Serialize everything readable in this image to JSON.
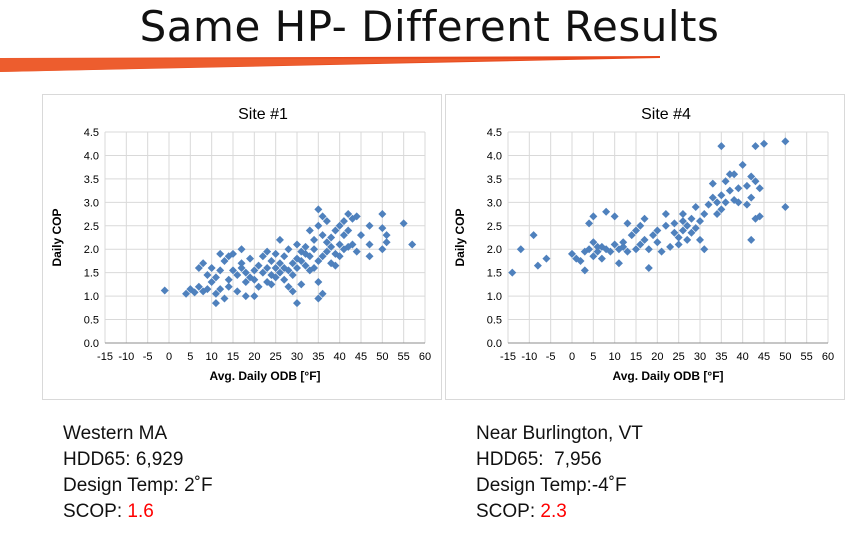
{
  "page": {
    "title": "Same HP- Different Results"
  },
  "colors": {
    "accent": "#e8491d",
    "marker": "#4f81bd",
    "scop_value": "#ff0000"
  },
  "chart_data": [
    {
      "type": "scatter",
      "title": "Site #1",
      "xlabel": "Avg. Daily ODB [°F]",
      "ylabel": "Daily COP",
      "xlim": [
        -15,
        60
      ],
      "ylim": [
        0,
        4.5
      ],
      "xticks": [
        -15,
        -10,
        -5,
        0,
        5,
        10,
        15,
        20,
        25,
        30,
        35,
        40,
        45,
        50,
        55,
        60
      ],
      "yticks": [
        "0.0",
        "0.5",
        "1.0",
        "1.5",
        "2.0",
        "2.5",
        "3.0",
        "3.5",
        "4.0",
        "4.5"
      ],
      "grid": true,
      "marker": "diamond",
      "points": [
        [
          -1,
          1.12
        ],
        [
          4,
          1.05
        ],
        [
          5,
          1.15
        ],
        [
          6,
          1.08
        ],
        [
          7,
          1.2
        ],
        [
          7,
          1.6
        ],
        [
          8,
          1.7
        ],
        [
          8,
          1.1
        ],
        [
          9,
          1.15
        ],
        [
          9,
          1.45
        ],
        [
          10,
          1.3
        ],
        [
          10,
          1.6
        ],
        [
          11,
          0.85
        ],
        [
          11,
          1.05
        ],
        [
          11,
          1.4
        ],
        [
          12,
          1.55
        ],
        [
          12,
          1.9
        ],
        [
          12,
          1.15
        ],
        [
          13,
          0.95
        ],
        [
          13,
          1.75
        ],
        [
          14,
          1.2
        ],
        [
          14,
          1.85
        ],
        [
          14,
          1.35
        ],
        [
          15,
          1.9
        ],
        [
          15,
          1.55
        ],
        [
          16,
          1.1
        ],
        [
          16,
          1.45
        ],
        [
          17,
          1.7
        ],
        [
          17,
          2.0
        ],
        [
          17,
          1.6
        ],
        [
          18,
          1.0
        ],
        [
          18,
          1.3
        ],
        [
          18,
          1.5
        ],
        [
          19,
          1.4
        ],
        [
          19,
          1.8
        ],
        [
          20,
          1.35
        ],
        [
          20,
          1.55
        ],
        [
          20,
          1.0
        ],
        [
          21,
          1.2
        ],
        [
          21,
          1.65
        ],
        [
          22,
          1.5
        ],
        [
          22,
          1.85
        ],
        [
          23,
          1.3
        ],
        [
          23,
          1.6
        ],
        [
          23,
          1.95
        ],
        [
          24,
          1.45
        ],
        [
          24,
          1.75
        ],
        [
          24,
          1.25
        ],
        [
          25,
          1.6
        ],
        [
          25,
          1.9
        ],
        [
          25,
          1.4
        ],
        [
          26,
          1.5
        ],
        [
          26,
          1.7
        ],
        [
          26,
          2.2
        ],
        [
          27,
          1.35
        ],
        [
          27,
          1.6
        ],
        [
          27,
          1.85
        ],
        [
          28,
          1.2
        ],
        [
          28,
          1.55
        ],
        [
          28,
          2.0
        ],
        [
          29,
          1.7
        ],
        [
          29,
          1.45
        ],
        [
          29,
          1.1
        ],
        [
          30,
          0.85
        ],
        [
          30,
          1.8
        ],
        [
          30,
          1.6
        ],
        [
          30,
          2.1
        ],
        [
          31,
          1.75
        ],
        [
          31,
          1.95
        ],
        [
          31,
          1.25
        ],
        [
          32,
          1.65
        ],
        [
          32,
          2.05
        ],
        [
          32,
          1.9
        ],
        [
          33,
          1.55
        ],
        [
          33,
          1.85
        ],
        [
          33,
          2.4
        ],
        [
          34,
          1.6
        ],
        [
          34,
          2.0
        ],
        [
          34,
          2.2
        ],
        [
          35,
          1.75
        ],
        [
          35,
          2.5
        ],
        [
          35,
          2.85
        ],
        [
          35,
          1.3
        ],
        [
          35,
          0.95
        ],
        [
          36,
          1.85
        ],
        [
          36,
          2.3
        ],
        [
          36,
          2.7
        ],
        [
          36,
          1.05
        ],
        [
          37,
          1.95
        ],
        [
          37,
          2.15
        ],
        [
          37,
          2.6
        ],
        [
          38,
          1.7
        ],
        [
          38,
          2.05
        ],
        [
          38,
          2.25
        ],
        [
          39,
          1.65
        ],
        [
          39,
          2.4
        ],
        [
          39,
          1.9
        ],
        [
          40,
          1.85
        ],
        [
          40,
          2.1
        ],
        [
          40,
          2.5
        ],
        [
          41,
          2.0
        ],
        [
          41,
          2.3
        ],
        [
          41,
          2.6
        ],
        [
          42,
          2.05
        ],
        [
          42,
          2.4
        ],
        [
          42,
          2.75
        ],
        [
          43,
          2.1
        ],
        [
          43,
          2.65
        ],
        [
          44,
          2.7
        ],
        [
          44,
          1.95
        ],
        [
          45,
          2.3
        ],
        [
          47,
          2.1
        ],
        [
          47,
          1.85
        ],
        [
          47,
          2.5
        ],
        [
          50,
          2.0
        ],
        [
          50,
          2.45
        ],
        [
          50,
          2.75
        ],
        [
          51,
          2.3
        ],
        [
          51,
          2.15
        ],
        [
          55,
          2.55
        ],
        [
          57,
          2.1
        ]
      ]
    },
    {
      "type": "scatter",
      "title": "Site #4",
      "xlabel": "Avg. Daily ODB [°F]",
      "ylabel": "Daily COP",
      "xlim": [
        -15,
        60
      ],
      "ylim": [
        0,
        4.5
      ],
      "xticks": [
        -15,
        -10,
        -5,
        0,
        5,
        10,
        15,
        20,
        25,
        30,
        35,
        40,
        45,
        50,
        55,
        60
      ],
      "yticks": [
        "0.0",
        "0.5",
        "1.0",
        "1.5",
        "2.0",
        "2.5",
        "3.0",
        "3.5",
        "4.0",
        "4.5"
      ],
      "grid": true,
      "marker": "diamond",
      "points": [
        [
          -14,
          1.5
        ],
        [
          -12,
          2.0
        ],
        [
          -9,
          2.3
        ],
        [
          -8,
          1.65
        ],
        [
          -6,
          1.8
        ],
        [
          0,
          1.9
        ],
        [
          1,
          1.8
        ],
        [
          2,
          1.75
        ],
        [
          3,
          1.55
        ],
        [
          3,
          1.95
        ],
        [
          4,
          2.0
        ],
        [
          4,
          2.55
        ],
        [
          5,
          2.15
        ],
        [
          5,
          1.85
        ],
        [
          5,
          2.7
        ],
        [
          6,
          1.95
        ],
        [
          6,
          2.05
        ],
        [
          7,
          1.8
        ],
        [
          7,
          2.05
        ],
        [
          8,
          2.0
        ],
        [
          8,
          2.8
        ],
        [
          9,
          1.95
        ],
        [
          10,
          2.1
        ],
        [
          10,
          2.7
        ],
        [
          11,
          2.0
        ],
        [
          11,
          1.7
        ],
        [
          12,
          2.05
        ],
        [
          12,
          2.15
        ],
        [
          13,
          1.95
        ],
        [
          13,
          2.55
        ],
        [
          14,
          2.3
        ],
        [
          15,
          2.0
        ],
        [
          15,
          2.4
        ],
        [
          16,
          2.1
        ],
        [
          16,
          2.5
        ],
        [
          17,
          2.2
        ],
        [
          17,
          2.65
        ],
        [
          18,
          1.6
        ],
        [
          18,
          2.0
        ],
        [
          19,
          2.3
        ],
        [
          20,
          2.15
        ],
        [
          20,
          2.4
        ],
        [
          21,
          1.95
        ],
        [
          22,
          2.5
        ],
        [
          22,
          2.75
        ],
        [
          23,
          2.05
        ],
        [
          24,
          2.35
        ],
        [
          24,
          2.55
        ],
        [
          25,
          2.1
        ],
        [
          25,
          2.25
        ],
        [
          26,
          2.4
        ],
        [
          26,
          2.6
        ],
        [
          26,
          2.75
        ],
        [
          27,
          2.2
        ],
        [
          27,
          2.5
        ],
        [
          28,
          2.35
        ],
        [
          28,
          2.65
        ],
        [
          29,
          2.9
        ],
        [
          29,
          2.45
        ],
        [
          30,
          2.2
        ],
        [
          30,
          2.6
        ],
        [
          31,
          2.0
        ],
        [
          31,
          2.75
        ],
        [
          32,
          2.95
        ],
        [
          33,
          3.1
        ],
        [
          33,
          3.4
        ],
        [
          34,
          2.75
        ],
        [
          34,
          3.0
        ],
        [
          35,
          3.15
        ],
        [
          35,
          2.85
        ],
        [
          35,
          4.2
        ],
        [
          36,
          3.0
        ],
        [
          36,
          3.45
        ],
        [
          37,
          3.6
        ],
        [
          37,
          3.25
        ],
        [
          38,
          3.05
        ],
        [
          38,
          3.6
        ],
        [
          39,
          3.0
        ],
        [
          39,
          3.3
        ],
        [
          40,
          3.8
        ],
        [
          41,
          3.35
        ],
        [
          41,
          2.95
        ],
        [
          42,
          3.1
        ],
        [
          42,
          2.2
        ],
        [
          42,
          3.55
        ],
        [
          43,
          2.65
        ],
        [
          43,
          3.45
        ],
        [
          43,
          4.2
        ],
        [
          44,
          2.7
        ],
        [
          44,
          3.3
        ],
        [
          45,
          4.25
        ],
        [
          50,
          4.3
        ],
        [
          50,
          2.9
        ]
      ]
    }
  ],
  "sites": [
    {
      "location": "Western MA",
      "hdd65": "HDD65: 6,929",
      "design_temp": "Design Temp: 2˚F",
      "scop_label": "SCOP: ",
      "scop_value": "1.6"
    },
    {
      "location": "Near Burlington, VT",
      "hdd65": "HDD65:  7,956",
      "design_temp": "Design Temp:-4˚F",
      "scop_label": "SCOP: ",
      "scop_value": "2.3"
    }
  ]
}
